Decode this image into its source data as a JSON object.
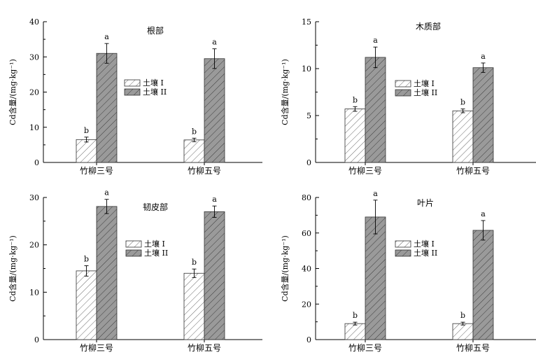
{
  "legend": {
    "soil1": "土壤 I",
    "soil2": "土壤 II"
  },
  "colors": {
    "soil1_fill": "#ffffff",
    "soil2_fill": "#9a9a9a",
    "hatch": "#333333",
    "axis": "#000000"
  },
  "chart_data": [
    {
      "type": "bar",
      "title": "根部",
      "ylabel": "Cd含量/(mg·kg⁻¹)",
      "categories": [
        "竹柳三号",
        "竹柳五号"
      ],
      "ylim": [
        0,
        40
      ],
      "yticks": [
        0,
        10,
        20,
        30,
        40
      ],
      "legend_position": "center-right",
      "series": [
        {
          "name": "土壤 I",
          "values": [
            6.5,
            6.4
          ],
          "errors": [
            0.7,
            0.5
          ],
          "labels": [
            "b",
            "b"
          ]
        },
        {
          "name": "土壤 II",
          "values": [
            31.0,
            29.5
          ],
          "errors": [
            2.8,
            2.8
          ],
          "labels": [
            "a",
            "a"
          ]
        }
      ]
    },
    {
      "type": "bar",
      "title": "木质部",
      "ylabel": "Cd含量/(mg·kg⁻¹)",
      "categories": [
        "竹柳三号",
        "竹柳五号"
      ],
      "ylim": [
        0,
        15
      ],
      "yticks": [
        0,
        5,
        10,
        15
      ],
      "legend_position": "center-right",
      "series": [
        {
          "name": "土壤 I",
          "values": [
            5.7,
            5.5
          ],
          "errors": [
            0.25,
            0.2
          ],
          "labels": [
            "b",
            "b"
          ]
        },
        {
          "name": "土壤 II",
          "values": [
            11.2,
            10.1
          ],
          "errors": [
            1.1,
            0.5
          ],
          "labels": [
            "a",
            "a"
          ]
        }
      ]
    },
    {
      "type": "bar",
      "title": "韧皮部",
      "ylabel": "Cd含量/(mg·kg⁻¹)",
      "categories": [
        "竹柳三号",
        "竹柳五号"
      ],
      "ylim": [
        0,
        30
      ],
      "yticks": [
        0,
        10,
        20,
        30
      ],
      "legend_position": "center-right",
      "series": [
        {
          "name": "土壤 I",
          "values": [
            14.5,
            14.0
          ],
          "errors": [
            1.1,
            0.9
          ],
          "labels": [
            "b",
            "b"
          ]
        },
        {
          "name": "土壤 II",
          "values": [
            28.1,
            27.0
          ],
          "errors": [
            1.5,
            1.2
          ],
          "labels": [
            "a",
            "a"
          ]
        }
      ]
    },
    {
      "type": "bar",
      "title": "叶片",
      "ylabel": "Cd含量/(mg·kg⁻¹)",
      "categories": [
        "竹柳三号",
        "竹柳五号"
      ],
      "ylim": [
        0,
        80
      ],
      "yticks": [
        0,
        20,
        40,
        60,
        80
      ],
      "legend_position": "center-right",
      "series": [
        {
          "name": "土壤 I",
          "values": [
            9.0,
            9.0
          ],
          "errors": [
            0.8,
            0.8
          ],
          "labels": [
            "b",
            "b"
          ]
        },
        {
          "name": "土壤 II",
          "values": [
            69.0,
            61.5
          ],
          "errors": [
            9.5,
            5.5
          ],
          "labels": [
            "a",
            "a"
          ]
        }
      ]
    }
  ]
}
